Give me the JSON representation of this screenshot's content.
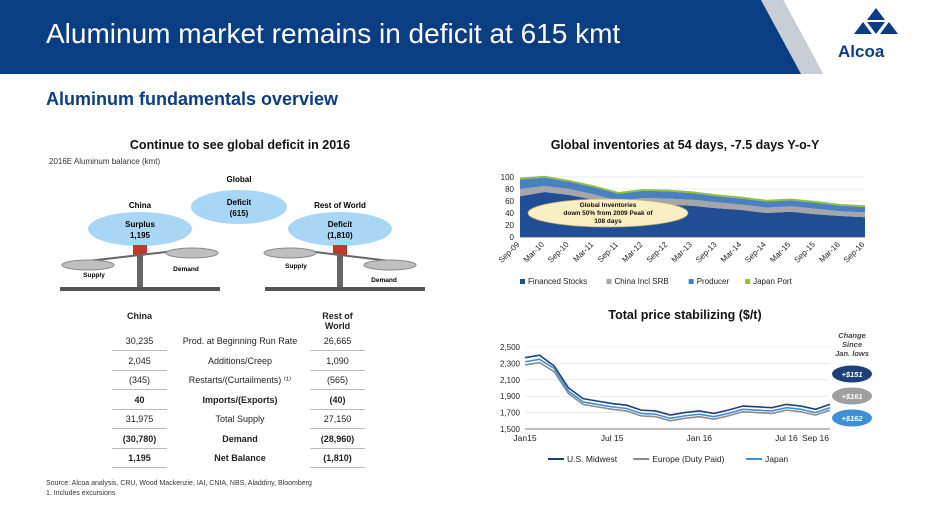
{
  "header": {
    "title": "Aluminum market remains in deficit at 615 kmt",
    "logo_text": "Alcoa"
  },
  "section_title": "Aluminum fundamentals overview",
  "left_panel": {
    "title": "Continue to see global deficit in 2016",
    "subtitle": "2016E Aluminum balance (kmt)",
    "global_label": "Global",
    "global_bubble": {
      "line1": "Deficit",
      "line2": "(615)"
    },
    "china_label": "China",
    "china_bubble": {
      "line1": "Surplus",
      "line2": "1,195"
    },
    "row_label": "Rest of World",
    "row_bubble": {
      "line1": "Deficit",
      "line2": "(1,810)"
    },
    "supply_label": "Supply",
    "demand_label": "Demand",
    "table": {
      "col_china": "China",
      "col_row_1": "Rest of",
      "col_row_2": "World",
      "rows": [
        {
          "china": "30,235",
          "label": "Prod. at Beginning Run Rate",
          "row": "26,665"
        },
        {
          "china": "2,045",
          "label": "Additions/Creep",
          "row": "1,090"
        },
        {
          "china": "(345)",
          "label": "Restarts/(Curtailments) ⁽¹⁾",
          "row": "(565)"
        },
        {
          "china": "40",
          "label": "Imports/(Exports)",
          "row": "(40)"
        },
        {
          "china": "31,975",
          "label": "Total Supply",
          "row": "27,150"
        },
        {
          "china": "(30,780)",
          "label": "Demand",
          "row": "(28,960)"
        },
        {
          "china": "1,195",
          "label": "Net Balance",
          "row": "(1,810)"
        }
      ]
    }
  },
  "footer": {
    "source": "Source: Alcoa analysis, CRU, Wood Mackenzie, IAI, CNIA, NBS, Aladdiny, Bloomberg",
    "note": "1.   Includes excursions"
  },
  "chart_data": [
    {
      "type": "area",
      "title": "Global inventories at 54 days, -7.5 days Y-o-Y",
      "ylim": [
        0,
        100
      ],
      "yticks": [
        0,
        20,
        40,
        60,
        80,
        100
      ],
      "categories": [
        "Sep-09",
        "Mar-10",
        "Sep-10",
        "Mar-11",
        "Sep-11",
        "Mar-12",
        "Sep-12",
        "Mar-13",
        "Sep-13",
        "Mar-14",
        "Sep-14",
        "Mar-15",
        "Sep-15",
        "Mar-16",
        "Sep-16"
      ],
      "series": [
        {
          "name": "Financed Stocks",
          "color": "#1f4e96",
          "values": [
            68,
            75,
            70,
            62,
            50,
            55,
            54,
            52,
            48,
            45,
            40,
            42,
            38,
            35,
            33
          ]
        },
        {
          "name": "China Incl SRB",
          "color": "#a6a6a6",
          "values": [
            12,
            10,
            10,
            9,
            10,
            10,
            10,
            10,
            10,
            9,
            9,
            9,
            9,
            8,
            8
          ]
        },
        {
          "name": "Producer",
          "color": "#4a7fc1",
          "values": [
            16,
            14,
            12,
            12,
            12,
            12,
            12,
            11,
            10,
            10,
            10,
            10,
            10,
            9,
            9
          ]
        },
        {
          "name": "Japan Port",
          "color": "#8fbf3f",
          "values": [
            3,
            3,
            3,
            3,
            3,
            3,
            3,
            3,
            3,
            3,
            3,
            3,
            3,
            3,
            3
          ]
        }
      ],
      "annotation": {
        "line1": "Global Inventories",
        "line2": "down 50%  from 2009 Peak of",
        "line3": "108 days"
      }
    },
    {
      "type": "line",
      "title": "Total price stabilizing ($/t)",
      "ylim": [
        1500,
        2500
      ],
      "yticks": [
        1500,
        1700,
        1900,
        2100,
        2300,
        2500
      ],
      "ytick_labels": [
        "1,500",
        "1,700",
        "1,900",
        "2,100",
        "2,300",
        "2,500"
      ],
      "x_labels": [
        "Jan15",
        "Jul 15",
        "Jan 16",
        "Jul 16",
        "Sep 16"
      ],
      "x_label_pos": [
        0,
        6,
        12,
        18,
        20
      ],
      "x": [
        0,
        1,
        2,
        3,
        4,
        5,
        6,
        7,
        8,
        9,
        10,
        11,
        12,
        13,
        14,
        15,
        16,
        17,
        18,
        19,
        20,
        21
      ],
      "series": [
        {
          "name": "U.S. Midwest",
          "color": "#1f3f7a",
          "values": [
            2370,
            2400,
            2270,
            2000,
            1870,
            1840,
            1810,
            1790,
            1730,
            1720,
            1670,
            1700,
            1720,
            1690,
            1730,
            1780,
            1770,
            1760,
            1800,
            1780,
            1740,
            1800
          ]
        },
        {
          "name": "Europe (Duty Paid)",
          "color": "#8c8c8c",
          "values": [
            2280,
            2310,
            2200,
            1930,
            1800,
            1770,
            1740,
            1720,
            1660,
            1650,
            1600,
            1630,
            1650,
            1620,
            1660,
            1710,
            1700,
            1690,
            1730,
            1710,
            1670,
            1730
          ]
        },
        {
          "name": "Japan",
          "color": "#3f8fd6",
          "values": [
            2320,
            2350,
            2240,
            1960,
            1830,
            1800,
            1770,
            1750,
            1690,
            1680,
            1630,
            1660,
            1680,
            1650,
            1690,
            1740,
            1730,
            1720,
            1760,
            1740,
            1700,
            1760
          ]
        }
      ],
      "side_label": {
        "line1": "Change",
        "line2": "Since",
        "line3": "Jan. lows"
      },
      "badges": [
        {
          "text": "+$151",
          "color": "#1f3f7a"
        },
        {
          "text": "+$161",
          "color": "#9e9e9e"
        },
        {
          "text": "+$162",
          "color": "#3f8fd6"
        }
      ]
    }
  ]
}
